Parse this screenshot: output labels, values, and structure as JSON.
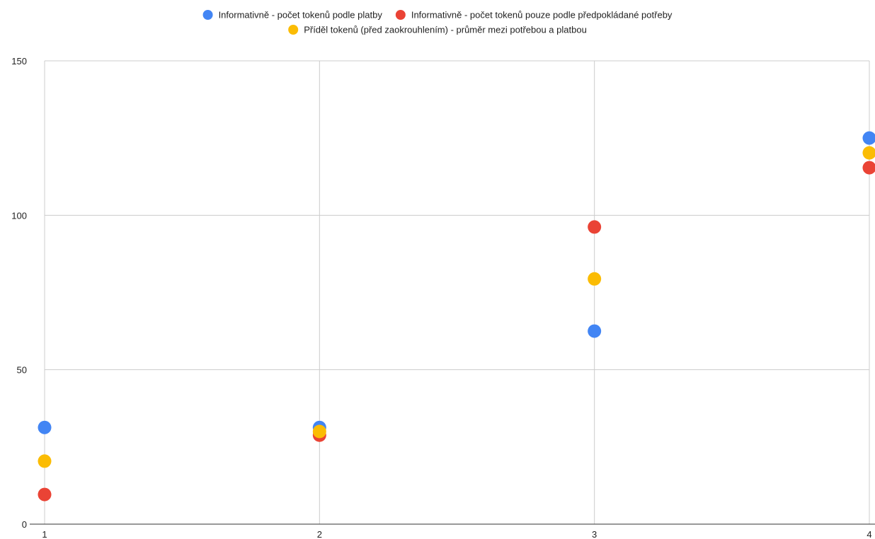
{
  "chart_data": {
    "type": "scatter",
    "x_ticks": [
      1,
      2,
      3,
      4
    ],
    "y_ticks": [
      0,
      50,
      100,
      150
    ],
    "xlim": [
      1,
      4
    ],
    "ylim": [
      0,
      150
    ],
    "grid": true,
    "legend_position": "top",
    "series": [
      {
        "name": "Informativně - počet tokenů podle platby",
        "color": "#4285F4",
        "points": [
          [
            1,
            31.3
          ],
          [
            2,
            31.3
          ],
          [
            3,
            62.5
          ],
          [
            4,
            125
          ]
        ]
      },
      {
        "name": "Informativně - počet tokenů pouze podle předpokládané potřeby",
        "color": "#EA4335",
        "points": [
          [
            1,
            9.6
          ],
          [
            2,
            28.8
          ],
          [
            3,
            96.2
          ],
          [
            4,
            115.4
          ]
        ]
      },
      {
        "name": "Příděl tokenů (před zaokrouhlením) - průměr mezi potřebou a platbou",
        "color": "#FBBC04",
        "points": [
          [
            1,
            20.4
          ],
          [
            2,
            30.0
          ],
          [
            3,
            79.4
          ],
          [
            4,
            120.2
          ]
        ]
      }
    ]
  }
}
